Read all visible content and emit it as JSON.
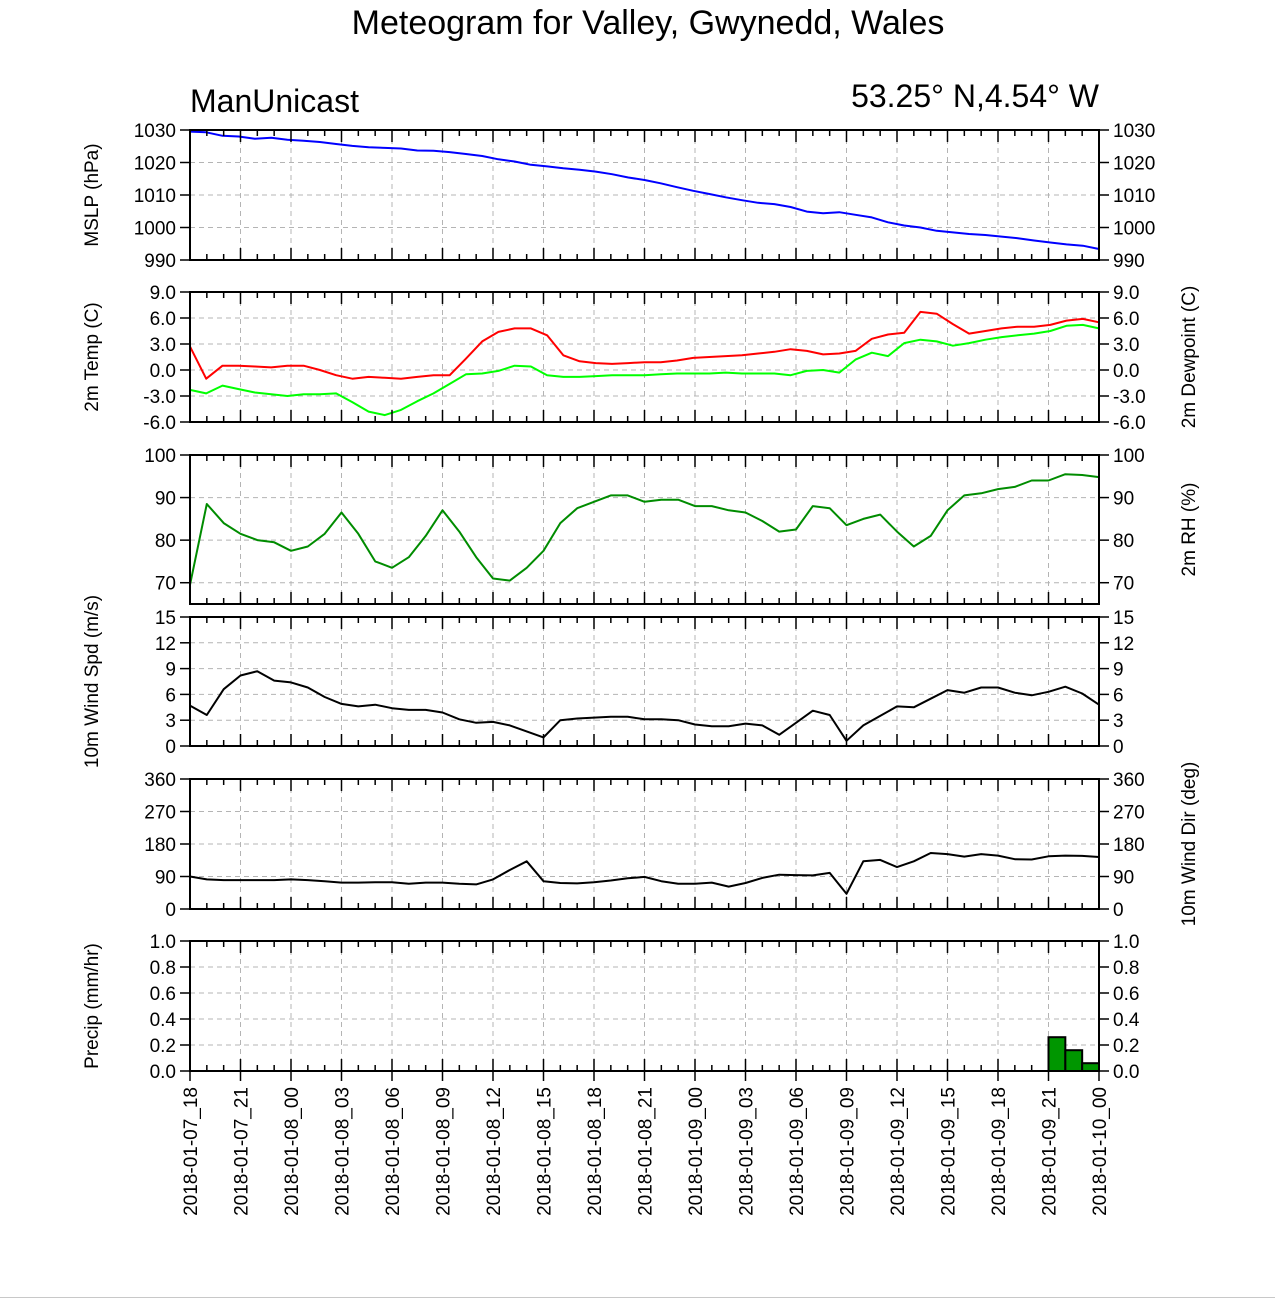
{
  "title": "Meteogram for Valley, Gwynedd, Wales",
  "model": "ManUnicast",
  "location": "53.25° N,4.54° W",
  "time_labels": [
    "2018-01-07_18",
    "2018-01-07_21",
    "2018-01-08_00",
    "2018-01-08_03",
    "2018-01-08_06",
    "2018-01-08_09",
    "2018-01-08_12",
    "2018-01-08_15",
    "2018-01-08_18",
    "2018-01-08_21",
    "2018-01-09_00",
    "2018-01-09_03",
    "2018-01-09_06",
    "2018-01-09_09",
    "2018-01-09_12",
    "2018-01-09_15",
    "2018-01-09_18",
    "2018-01-09_21",
    "2018-01-10_00"
  ],
  "chart_data": [
    {
      "type": "line",
      "ylabel": "MSLP (hPa)",
      "ylim": [
        990,
        1030
      ],
      "yticks": [
        "990",
        "1000",
        "1010",
        "1020",
        "1030"
      ],
      "series": [
        {
          "color": "#0000ff",
          "values": [
            1029.5,
            1029.3,
            1028.2,
            1028.0,
            1027.3,
            1027.6,
            1027.0,
            1026.7,
            1026.3,
            1025.7,
            1025.1,
            1024.7,
            1024.5,
            1024.3,
            1023.7,
            1023.6,
            1023.2,
            1022.6,
            1022.0,
            1021.0,
            1020.3,
            1019.3,
            1018.8,
            1018.2,
            1017.8,
            1017.2,
            1016.4,
            1015.4,
            1014.6,
            1013.6,
            1012.4,
            1011.3,
            1010.3,
            1009.3,
            1008.4,
            1007.6,
            1007.2,
            1006.3,
            1004.9,
            1004.4,
            1004.7,
            1003.9,
            1003.1,
            1001.6,
            1000.6,
            1000.0,
            999.0,
            998.5,
            998.0,
            997.7,
            997.2,
            996.7,
            996.0,
            995.4,
            994.8,
            994.4,
            993.4
          ]
        }
      ]
    },
    {
      "type": "line",
      "ylabel": "2m Temp (C)",
      "y2label": "2m Dewpoint (C)",
      "ylim": [
        -6,
        9
      ],
      "yticks": [
        "-6.0",
        "-3.0",
        "0.0",
        "3.0",
        "6.0",
        "9.0"
      ],
      "series": [
        {
          "color": "#ff0000",
          "values": [
            2.7,
            -1.0,
            0.5,
            0.5,
            0.4,
            0.3,
            0.5,
            0.5,
            0.0,
            -0.6,
            -1.0,
            -0.8,
            -0.9,
            -1.0,
            -0.8,
            -0.6,
            -0.6,
            1.3,
            3.3,
            4.4,
            4.8,
            4.8,
            4.0,
            1.7,
            1.0,
            0.8,
            0.7,
            0.8,
            0.9,
            0.9,
            1.1,
            1.4,
            1.5,
            1.6,
            1.7,
            1.9,
            2.1,
            2.4,
            2.2,
            1.8,
            1.9,
            2.2,
            3.6,
            4.1,
            4.3,
            6.7,
            6.5,
            5.3,
            4.2,
            4.5,
            4.8,
            5.0,
            5.0,
            5.2,
            5.7,
            5.9,
            5.5
          ]
        },
        {
          "color": "#00ff00",
          "values": [
            -2.3,
            -2.7,
            -1.8,
            -2.2,
            -2.6,
            -2.8,
            -3.0,
            -2.8,
            -2.8,
            -2.7,
            -3.7,
            -4.8,
            -5.2,
            -4.6,
            -3.6,
            -2.7,
            -1.6,
            -0.5,
            -0.4,
            -0.1,
            0.5,
            0.4,
            -0.6,
            -0.8,
            -0.8,
            -0.7,
            -0.6,
            -0.6,
            -0.6,
            -0.5,
            -0.4,
            -0.4,
            -0.4,
            -0.3,
            -0.4,
            -0.4,
            -0.4,
            -0.6,
            -0.1,
            0.0,
            -0.3,
            1.2,
            2.0,
            1.6,
            3.1,
            3.5,
            3.3,
            2.8,
            3.1,
            3.5,
            3.8,
            4.0,
            4.2,
            4.5,
            5.1,
            5.2,
            4.8
          ]
        }
      ]
    },
    {
      "type": "line",
      "ylabel": "",
      "y2label": "2m RH (%)",
      "ylim": [
        65,
        100
      ],
      "yticks": [
        "70",
        "80",
        "90",
        "100"
      ],
      "yticks_at": [
        70,
        80,
        90,
        100
      ],
      "series": [
        {
          "color": "#008c00",
          "values": [
            69.5,
            88.5,
            84.0,
            81.5,
            80.0,
            79.5,
            77.5,
            78.5,
            81.5,
            86.5,
            81.5,
            75.0,
            73.5,
            76.0,
            81.0,
            87.0,
            82.0,
            76.0,
            71.0,
            70.5,
            73.5,
            77.5,
            84.0,
            87.5,
            89.0,
            90.5,
            90.5,
            89.0,
            89.5,
            89.5,
            88.0,
            88.0,
            87.0,
            86.5,
            84.5,
            82.0,
            82.5,
            88.0,
            87.5,
            83.5,
            85.0,
            86.0,
            82.0,
            78.5,
            81.0,
            87.0,
            90.5,
            91.0,
            92.0,
            92.5,
            94.0,
            94.0,
            95.5,
            95.3,
            94.8
          ]
        }
      ]
    },
    {
      "type": "line",
      "ylabel": "10m Wind Spd (m/s)",
      "ylim": [
        0,
        15
      ],
      "yticks": [
        "0",
        "3",
        "6",
        "9",
        "12",
        "15"
      ],
      "series": [
        {
          "color": "#000000",
          "values": [
            4.7,
            3.6,
            6.6,
            8.2,
            8.7,
            7.6,
            7.4,
            6.8,
            5.7,
            4.9,
            4.6,
            4.8,
            4.4,
            4.2,
            4.2,
            3.9,
            3.1,
            2.7,
            2.8,
            2.4,
            1.7,
            1.0,
            3.0,
            3.2,
            3.3,
            3.4,
            3.4,
            3.1,
            3.1,
            3.0,
            2.5,
            2.3,
            2.3,
            2.6,
            2.4,
            1.3,
            2.7,
            4.1,
            3.6,
            0.6,
            2.4,
            3.5,
            4.6,
            4.5,
            5.5,
            6.5,
            6.2,
            6.8,
            6.8,
            6.2,
            5.9,
            6.3,
            6.9,
            6.1,
            4.8
          ]
        }
      ]
    },
    {
      "type": "line",
      "ylabel": "",
      "y2label": "10m Wind Dir (deg)",
      "ylim": [
        0,
        360
      ],
      "yticks": [
        "0",
        "90",
        "180",
        "270",
        "360"
      ],
      "series": [
        {
          "color": "#000000",
          "values": [
            90,
            82,
            80,
            80,
            80,
            80,
            82,
            80,
            77,
            73,
            73,
            74,
            74,
            70,
            73,
            73,
            70,
            68,
            82,
            108,
            132,
            77,
            72,
            71,
            74,
            79,
            85,
            89,
            77,
            70,
            70,
            73,
            62,
            72,
            86,
            95,
            94,
            93,
            100,
            42,
            132,
            136,
            116,
            132,
            155,
            152,
            145,
            152,
            148,
            138,
            137,
            146,
            148,
            147,
            144
          ]
        }
      ]
    },
    {
      "type": "bar",
      "ylabel": "Precip (mm/hr)",
      "ylim": [
        0,
        1
      ],
      "yticks": [
        "0.0",
        "0.2",
        "0.4",
        "0.6",
        "0.8",
        "1.0"
      ],
      "bar_color": "#009600",
      "bar_start_index": 51,
      "values": [
        0.26,
        0.16,
        0.06
      ]
    }
  ]
}
